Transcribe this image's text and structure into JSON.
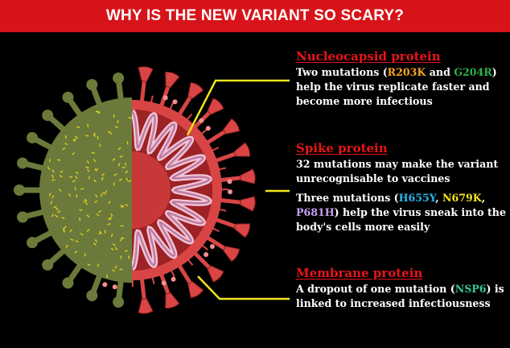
{
  "header": {
    "title": "WHY IS THE NEW VARIANT SO SCARY?"
  },
  "colors": {
    "header": "#d7141a",
    "title_red": "#e8141a",
    "leader_line": "#f2e41c",
    "virus_outer": "#6b7a3a",
    "virus_inner": "#d94545"
  },
  "sections": [
    {
      "title": "Nucleocapsid protein",
      "p1": {
        "pre": "Two mutations (",
        "m1": "R203K",
        "mid": " and ",
        "m2": "G204R",
        "post": ") help the virus replicate faster and become more infectious"
      }
    },
    {
      "title": "Spike protein",
      "p1": "32 mutations may make the variant unrecognisable to vaccines",
      "p2": {
        "pre": "Three mutations (",
        "m1": "H655Y",
        "sep1": ", ",
        "m2": "N679K",
        "sep2": ", ",
        "m3": "P681H",
        "post": ") help the virus sneak into the body's cells more easily"
      }
    },
    {
      "title": "Membrane protein",
      "p1": {
        "pre": "A dropout of one mutation (",
        "m1": "NSP6",
        "post": ") is linked to increased infectiousness"
      }
    }
  ]
}
